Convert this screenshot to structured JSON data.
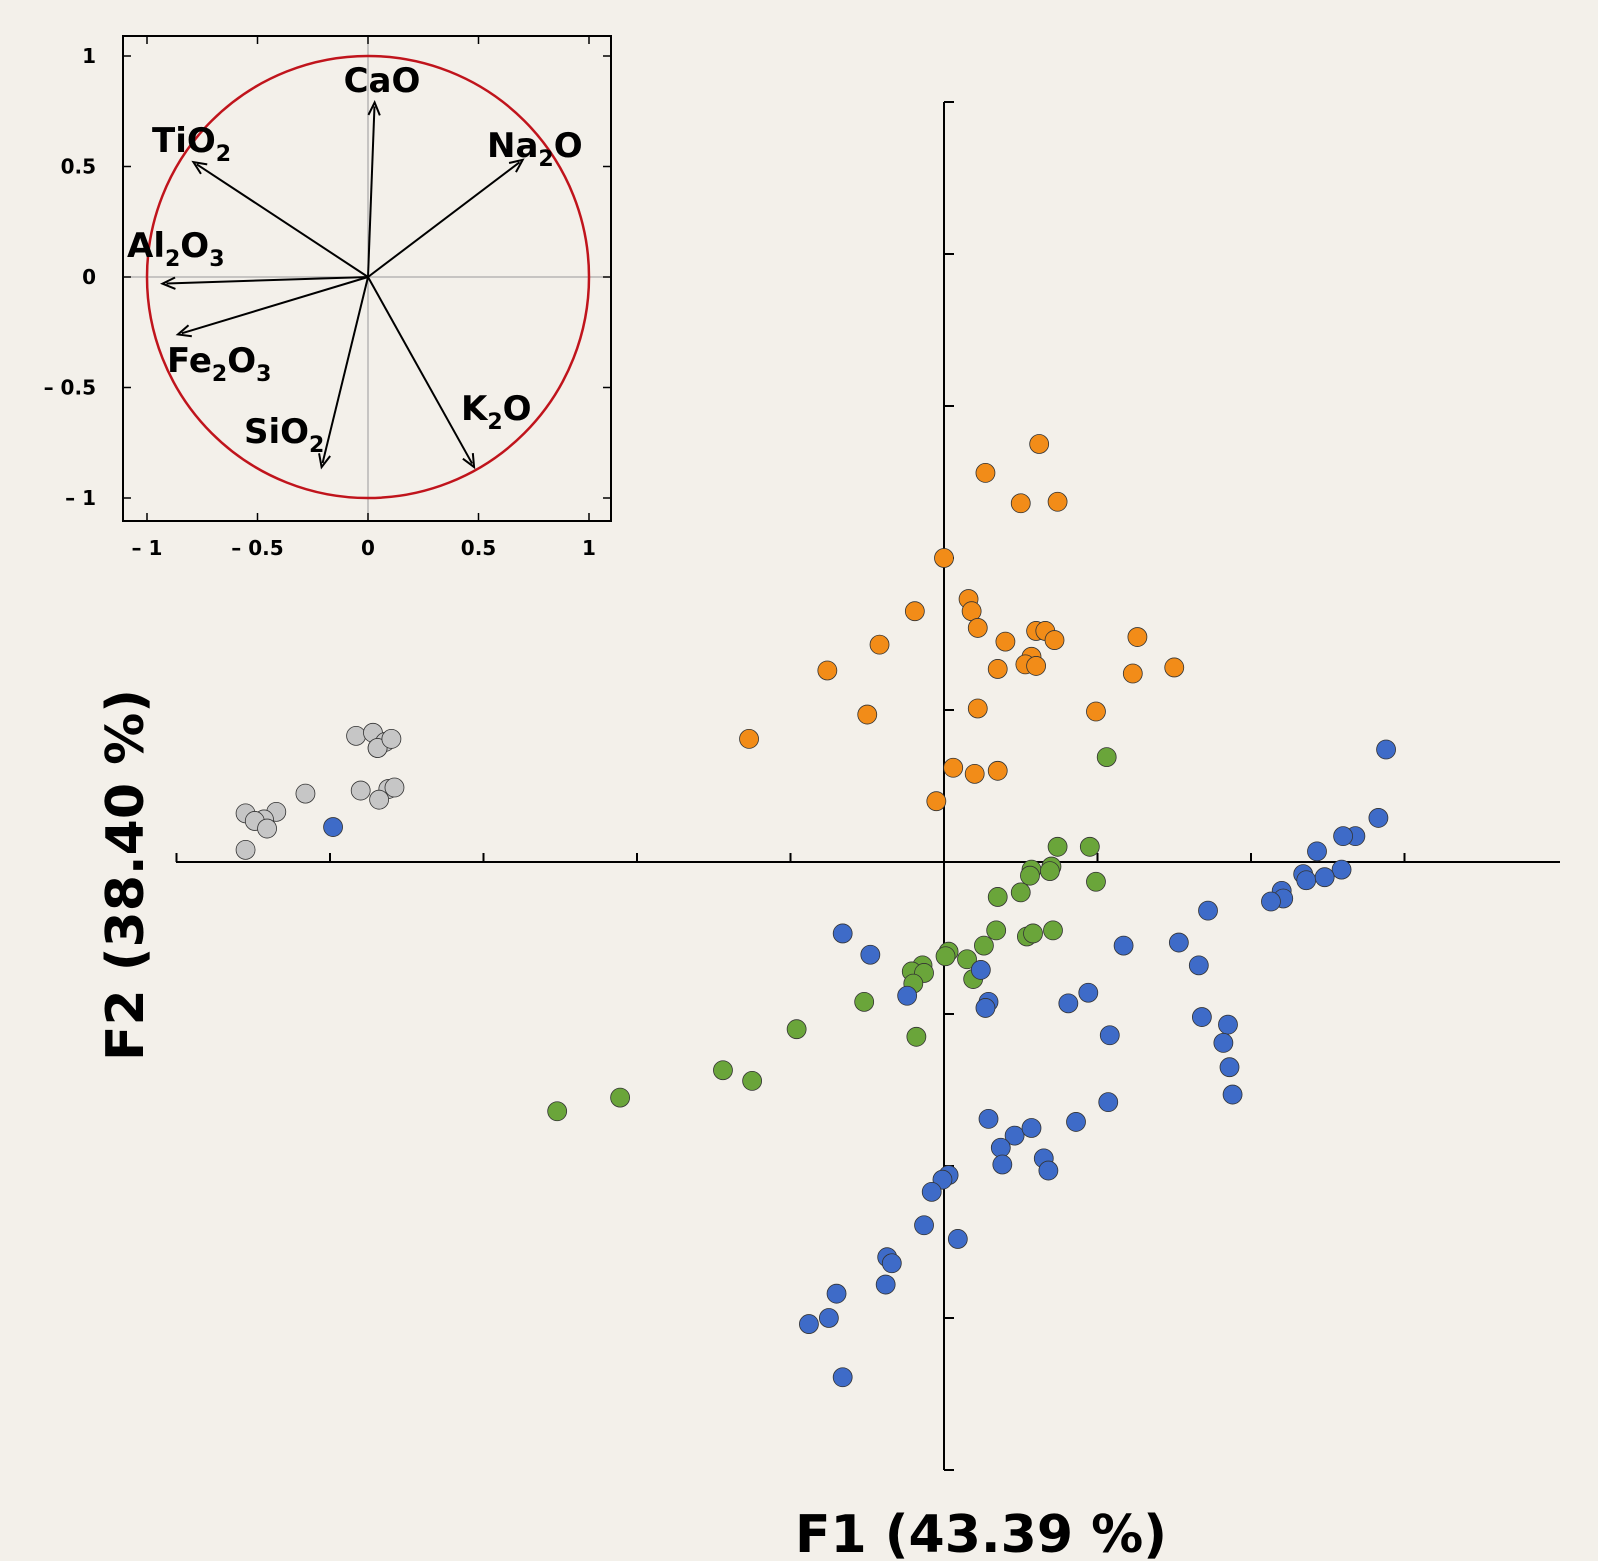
{
  "chart_data": [
    {
      "type": "scatter",
      "xlabel": "F1 (43.39 %)",
      "ylabel": "F2 (38.40 %)",
      "series": [
        {
          "color": "#f28c18",
          "points": [
            [
              0.62,
              2.75
            ],
            [
              0.27,
              2.56
            ],
            [
              0.5,
              2.36
            ],
            [
              0.74,
              2.37
            ],
            [
              0.0,
              2.0
            ],
            [
              0.16,
              1.73
            ],
            [
              0.18,
              1.65
            ],
            [
              -0.19,
              1.65
            ],
            [
              0.22,
              1.54
            ],
            [
              0.6,
              1.52
            ],
            [
              0.66,
              1.52
            ],
            [
              0.4,
              1.45
            ],
            [
              0.72,
              1.46
            ],
            [
              1.26,
              1.48
            ],
            [
              -0.42,
              1.43
            ],
            [
              0.57,
              1.35
            ],
            [
              0.53,
              1.3
            ],
            [
              0.6,
              1.29
            ],
            [
              0.35,
              1.27
            ],
            [
              1.5,
              1.28
            ],
            [
              -0.76,
              1.26
            ],
            [
              1.23,
              1.24
            ],
            [
              0.22,
              1.01
            ],
            [
              0.99,
              0.99
            ],
            [
              -0.5,
              0.97
            ],
            [
              -1.27,
              0.81
            ],
            [
              0.06,
              0.62
            ],
            [
              0.2,
              0.58
            ],
            [
              0.35,
              0.6
            ],
            [
              -0.05,
              0.4
            ]
          ]
        },
        {
          "color": "#6aa53a",
          "points": [
            [
              1.06,
              0.69
            ],
            [
              0.74,
              0.1
            ],
            [
              0.95,
              0.1
            ],
            [
              0.57,
              -0.05
            ],
            [
              0.7,
              -0.03
            ],
            [
              0.69,
              -0.06
            ],
            [
              0.99,
              -0.13
            ],
            [
              0.56,
              -0.09
            ],
            [
              0.5,
              -0.2
            ],
            [
              0.35,
              -0.23
            ],
            [
              0.34,
              -0.45
            ],
            [
              0.54,
              -0.49
            ],
            [
              0.71,
              -0.45
            ],
            [
              0.58,
              -0.47
            ],
            [
              0.26,
              -0.55
            ],
            [
              0.03,
              -0.59
            ],
            [
              0.01,
              -0.62
            ],
            [
              0.15,
              -0.64
            ],
            [
              -0.14,
              -0.68
            ],
            [
              -0.21,
              -0.72
            ],
            [
              -0.13,
              -0.73
            ],
            [
              -0.2,
              -0.8
            ],
            [
              0.19,
              -0.77
            ],
            [
              -0.52,
              -0.92
            ],
            [
              -0.96,
              -1.1
            ],
            [
              -0.18,
              -1.15
            ],
            [
              -1.44,
              -1.37
            ],
            [
              -1.25,
              -1.44
            ],
            [
              -2.11,
              -1.55
            ],
            [
              -2.52,
              -1.64
            ]
          ]
        },
        {
          "color": "#3e6bc8",
          "points": [
            [
              2.88,
              0.74
            ],
            [
              2.83,
              0.29
            ],
            [
              2.68,
              0.17
            ],
            [
              2.6,
              0.17
            ],
            [
              2.43,
              0.07
            ],
            [
              2.34,
              -0.08
            ],
            [
              2.36,
              -0.12
            ],
            [
              2.59,
              -0.05
            ],
            [
              2.48,
              -0.1
            ],
            [
              2.2,
              -0.19
            ],
            [
              2.21,
              -0.24
            ],
            [
              2.13,
              -0.26
            ],
            [
              1.72,
              -0.32
            ],
            [
              1.53,
              -0.53
            ],
            [
              1.17,
              -0.55
            ],
            [
              -0.66,
              -0.47
            ],
            [
              -0.48,
              -0.61
            ],
            [
              0.24,
              -0.71
            ],
            [
              -0.24,
              -0.88
            ],
            [
              0.29,
              -0.92
            ],
            [
              0.27,
              -0.96
            ],
            [
              0.81,
              -0.93
            ],
            [
              0.94,
              -0.86
            ],
            [
              1.66,
              -0.68
            ],
            [
              1.68,
              -1.02
            ],
            [
              1.85,
              -1.07
            ],
            [
              1.82,
              -1.19
            ],
            [
              1.86,
              -1.35
            ],
            [
              1.88,
              -1.53
            ],
            [
              1.08,
              -1.14
            ],
            [
              1.07,
              -1.58
            ],
            [
              0.86,
              -1.71
            ],
            [
              0.29,
              -1.69
            ],
            [
              0.46,
              -1.8
            ],
            [
              0.57,
              -1.75
            ],
            [
              0.37,
              -1.88
            ],
            [
              0.38,
              -1.99
            ],
            [
              0.65,
              -1.95
            ],
            [
              0.68,
              -2.03
            ],
            [
              0.03,
              -2.06
            ],
            [
              -0.01,
              -2.09
            ],
            [
              -0.08,
              -2.17
            ],
            [
              -0.13,
              -2.39
            ],
            [
              0.09,
              -2.48
            ],
            [
              -0.37,
              -2.6
            ],
            [
              -0.34,
              -2.64
            ],
            [
              -0.38,
              -2.78
            ],
            [
              -0.7,
              -2.84
            ],
            [
              -0.75,
              -3.0
            ],
            [
              -0.88,
              -3.04
            ],
            [
              -0.66,
              -3.39
            ],
            [
              -3.98,
              0.23
            ]
          ]
        },
        {
          "color": "#c6c6c6",
          "points": [
            [
              -3.83,
              0.83
            ],
            [
              -3.72,
              0.85
            ],
            [
              -3.64,
              0.79
            ],
            [
              -3.69,
              0.75
            ],
            [
              -3.69,
              0.75
            ],
            [
              -3.6,
              0.81
            ],
            [
              -3.62,
              0.48
            ],
            [
              -3.58,
              0.49
            ],
            [
              -3.68,
              0.41
            ],
            [
              -3.8,
              0.47
            ],
            [
              -4.16,
              0.45
            ],
            [
              -4.35,
              0.33
            ],
            [
              -4.55,
              0.32
            ],
            [
              -4.43,
              0.28
            ],
            [
              -4.49,
              0.27
            ],
            [
              -4.41,
              0.22
            ],
            [
              -4.55,
              0.08
            ]
          ]
        }
      ]
    },
    {
      "type": "correlation-circle",
      "xlim": [
        -1.1,
        1.1
      ],
      "ylim": [
        -1.1,
        1.1
      ],
      "x_ticks": [
        "– 1",
        "– 0.5",
        "0",
        "0.5",
        "1"
      ],
      "y_ticks": [
        "1",
        "0.5",
        "0",
        "– 0.5",
        "– 1"
      ],
      "circle_color": "#c0141c",
      "vectors": [
        {
          "name": "CaO",
          "base": "CaO",
          "sub": "",
          "tail": "",
          "x": 0.03,
          "y": 0.79
        },
        {
          "name": "TiO2",
          "base": "TiO",
          "sub": "2",
          "tail": "",
          "x": -0.79,
          "y": 0.52
        },
        {
          "name": "Na2O",
          "base": "Na",
          "sub": "2",
          "tail": "O",
          "x": 0.7,
          "y": 0.53
        },
        {
          "name": "Al2O3",
          "base": "Al",
          "sub": "2",
          "tail": "O",
          "sub2": "3",
          "x": -0.93,
          "y": -0.03
        },
        {
          "name": "Fe2O3",
          "base": "Fe",
          "sub": "2",
          "tail": "O",
          "sub2": "3",
          "x": -0.86,
          "y": -0.26
        },
        {
          "name": "SiO2",
          "base": "SiO",
          "sub": "2",
          "tail": "",
          "x": -0.21,
          "y": -0.86
        },
        {
          "name": "K2O",
          "base": "K",
          "sub": "2",
          "tail": "O",
          "x": 0.48,
          "y": -0.86
        }
      ]
    }
  ]
}
